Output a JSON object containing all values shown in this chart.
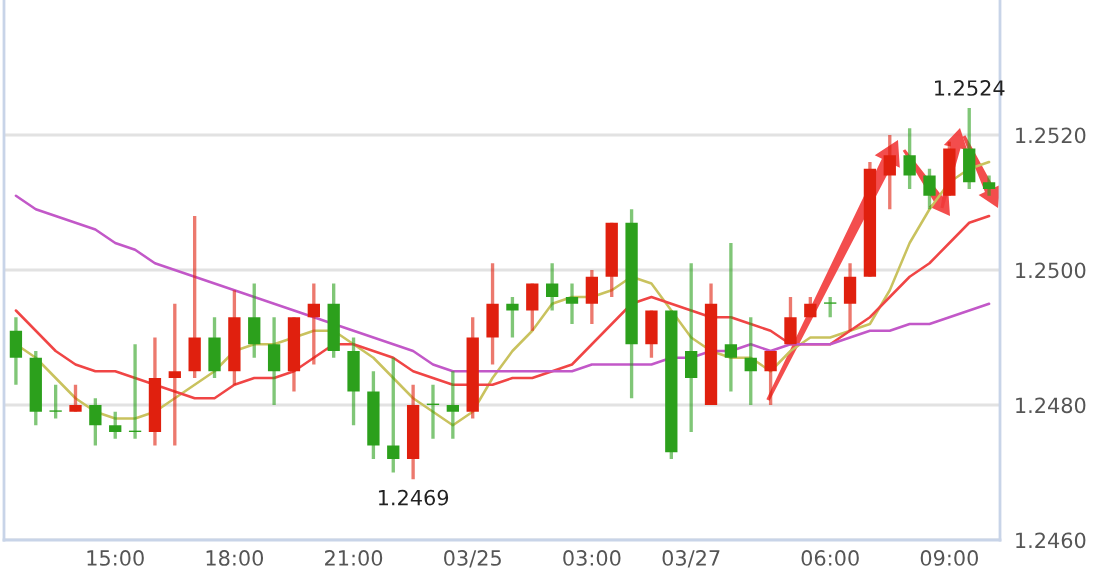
{
  "chart_data": {
    "type": "candlestick",
    "categories": [
      null,
      null,
      null,
      null,
      null,
      "15:00",
      null,
      null,
      null,
      null,
      null,
      "18:00",
      null,
      null,
      null,
      null,
      null,
      "21:00",
      null,
      null,
      null,
      null,
      null,
      "03/25",
      null,
      null,
      null,
      null,
      null,
      "03:00",
      null,
      null,
      null,
      null,
      "03/27",
      null,
      null,
      null,
      null,
      null,
      null,
      "06:00",
      null,
      null,
      null,
      null,
      null,
      "09:00",
      null,
      null
    ],
    "ohlc": [
      [
        1.2491,
        1.2493,
        1.2483,
        1.2487
      ],
      [
        1.2487,
        1.2488,
        1.2477,
        1.2479
      ],
      [
        1.2479,
        1.2483,
        1.2478,
        1.2479
      ],
      [
        1.2479,
        1.2483,
        1.2479,
        1.248
      ],
      [
        1.248,
        1.2481,
        1.2474,
        1.2477
      ],
      [
        1.2477,
        1.2479,
        1.2475,
        1.2476
      ],
      [
        1.2476,
        1.2489,
        1.2475,
        1.2476
      ],
      [
        1.2476,
        1.249,
        1.2474,
        1.2484
      ],
      [
        1.2484,
        1.2495,
        1.2474,
        1.2485
      ],
      [
        1.2485,
        1.2508,
        1.2484,
        1.249
      ],
      [
        1.249,
        1.2493,
        1.2484,
        1.2485
      ],
      [
        1.2485,
        1.2497,
        1.2483,
        1.2493
      ],
      [
        1.2493,
        1.2498,
        1.2487,
        1.2489
      ],
      [
        1.2489,
        1.2493,
        1.248,
        1.2485
      ],
      [
        1.2485,
        1.2493,
        1.2482,
        1.2493
      ],
      [
        1.2493,
        1.2498,
        1.2486,
        1.2495
      ],
      [
        1.2495,
        1.2498,
        1.2487,
        1.2488
      ],
      [
        1.2488,
        1.249,
        1.2477,
        1.2482
      ],
      [
        1.2482,
        1.2485,
        1.2472,
        1.2474
      ],
      [
        1.2474,
        1.2487,
        1.247,
        1.2472
      ],
      [
        1.2472,
        1.2483,
        1.2469,
        1.248
      ],
      [
        1.248,
        1.2483,
        1.2475,
        1.248
      ],
      [
        1.248,
        1.2485,
        1.2475,
        1.2479
      ],
      [
        1.2479,
        1.2493,
        1.2478,
        1.249
      ],
      [
        1.249,
        1.2501,
        1.2486,
        1.2495
      ],
      [
        1.2495,
        1.2496,
        1.249,
        1.2494
      ],
      [
        1.2494,
        1.2498,
        1.2491,
        1.2498
      ],
      [
        1.2498,
        1.2501,
        1.2494,
        1.2496
      ],
      [
        1.2496,
        1.2498,
        1.2492,
        1.2495
      ],
      [
        1.2495,
        1.25,
        1.2492,
        1.2499
      ],
      [
        1.2499,
        1.2507,
        1.2496,
        1.2507
      ],
      [
        1.2507,
        1.2509,
        1.2481,
        1.2489
      ],
      [
        1.2489,
        1.2494,
        1.2487,
        1.2494
      ],
      [
        1.2494,
        1.2494,
        1.2472,
        1.2473
      ],
      [
        1.2488,
        1.2501,
        1.2476,
        1.2484
      ],
      [
        1.248,
        1.2498,
        1.248,
        1.2495
      ],
      [
        1.2489,
        1.2504,
        1.2482,
        1.2487
      ],
      [
        1.2487,
        1.2493,
        1.248,
        1.2485
      ],
      [
        1.2485,
        1.2488,
        1.248,
        1.2488
      ],
      [
        1.2489,
        1.2496,
        1.2489,
        1.2493
      ],
      [
        1.2493,
        1.2496,
        1.2493,
        1.2495
      ],
      [
        1.2495,
        1.2496,
        1.2493,
        1.2495
      ],
      [
        1.2495,
        1.2501,
        1.2491,
        1.2499
      ],
      [
        1.2499,
        1.2516,
        1.2499,
        1.2515
      ],
      [
        1.2514,
        1.252,
        1.2509,
        1.2517
      ],
      [
        1.2517,
        1.2521,
        1.2512,
        1.2514
      ],
      [
        1.2514,
        1.2515,
        1.2509,
        1.2511
      ],
      [
        1.2511,
        1.2519,
        1.2511,
        1.2518
      ],
      [
        1.2518,
        1.2524,
        1.2512,
        1.2513
      ],
      [
        1.2513,
        1.2514,
        1.2511,
        1.2512
      ]
    ],
    "colors": [
      "#2ca01c",
      "#2ca01c",
      "#2ca01c",
      "#e0200e",
      "#2ca01c",
      "#2ca01c",
      "#2ca01c",
      "#e0200e",
      "#e0200e",
      "#e0200e",
      "#2ca01c",
      "#e0200e",
      "#2ca01c",
      "#2ca01c",
      "#e0200e",
      "#e0200e",
      "#2ca01c",
      "#2ca01c",
      "#2ca01c",
      "#2ca01c",
      "#e0200e",
      "#2ca01c",
      "#2ca01c",
      "#e0200e",
      "#e0200e",
      "#2ca01c",
      "#e0200e",
      "#2ca01c",
      "#2ca01c",
      "#e0200e",
      "#e0200e",
      "#2ca01c",
      "#e0200e",
      "#2ca01c",
      "#2ca01c",
      "#e0200e",
      "#2ca01c",
      "#2ca01c",
      "#e0200e",
      "#e0200e",
      "#e0200e",
      "#2ca01c",
      "#e0200e",
      "#e0200e",
      "#e0200e",
      "#2ca01c",
      "#2ca01c",
      "#e0200e",
      "#2ca01c",
      "#2ca01c"
    ],
    "series": [
      {
        "type": "line",
        "color": "#c9c25e",
        "values": [
          1.2489,
          1.2487,
          1.2484,
          1.2481,
          1.2479,
          1.2478,
          1.2478,
          1.2479,
          1.2481,
          1.2483,
          1.2485,
          1.2488,
          1.2489,
          1.2489,
          1.249,
          1.2491,
          1.2491,
          1.2489,
          1.2487,
          1.2484,
          1.2481,
          1.2479,
          1.2477,
          1.2479,
          1.2484,
          1.2488,
          1.2491,
          1.2495,
          1.2496,
          1.2496,
          1.2497,
          1.2499,
          1.2498,
          1.2494,
          1.249,
          1.2488,
          1.2487,
          1.2487,
          1.2485,
          1.2488,
          1.249,
          1.249,
          1.2491,
          1.2492,
          1.2497,
          1.2504,
          1.2509,
          1.2513,
          1.2515,
          1.2516
        ]
      },
      {
        "type": "line",
        "color": "#f04545",
        "values": [
          1.2494,
          1.2491,
          1.2488,
          1.2486,
          1.2485,
          1.2485,
          1.2484,
          1.2483,
          1.2482,
          1.2481,
          1.2481,
          1.2483,
          1.2484,
          1.2484,
          1.2485,
          1.2487,
          1.2489,
          1.2489,
          1.2488,
          1.2487,
          1.2485,
          1.2484,
          1.2483,
          1.2483,
          1.2483,
          1.2484,
          1.2484,
          1.2485,
          1.2486,
          1.2489,
          1.2492,
          1.2495,
          1.2496,
          1.2495,
          1.2494,
          1.2493,
          1.2493,
          1.2492,
          1.2491,
          1.2489,
          1.2489,
          1.2489,
          1.2491,
          1.2493,
          1.2496,
          1.2499,
          1.2501,
          1.2504,
          1.2507,
          1.2508
        ]
      },
      {
        "type": "line",
        "color": "#c258c8",
        "values": [
          1.2511,
          1.2509,
          1.2508,
          1.2507,
          1.2506,
          1.2504,
          1.2503,
          1.2501,
          1.25,
          1.2499,
          1.2498,
          1.2497,
          1.2496,
          1.2495,
          1.2494,
          1.2493,
          1.2492,
          1.2491,
          1.249,
          1.2489,
          1.2488,
          1.2486,
          1.2485,
          1.2485,
          1.2485,
          1.2485,
          1.2485,
          1.2485,
          1.2485,
          1.2486,
          1.2486,
          1.2486,
          1.2486,
          1.2487,
          1.2487,
          1.2488,
          1.2488,
          1.2489,
          1.2488,
          1.2489,
          1.2489,
          1.2489,
          1.249,
          1.2491,
          1.2491,
          1.2492,
          1.2492,
          1.2493,
          1.2494,
          1.2495
        ]
      }
    ],
    "ylim": [
      1.246,
      1.254
    ],
    "yticks": [
      {
        "value": 1.246,
        "label": "1.2460"
      },
      {
        "value": 1.248,
        "label": "1.2480"
      },
      {
        "value": 1.25,
        "label": "1.2500"
      },
      {
        "value": 1.252,
        "label": "1.2520"
      }
    ],
    "grid": "y",
    "annotations": [
      {
        "text": "1.2469",
        "y": 1.2469
      },
      {
        "text": "1.2524",
        "y": 1.2524
      }
    ]
  }
}
